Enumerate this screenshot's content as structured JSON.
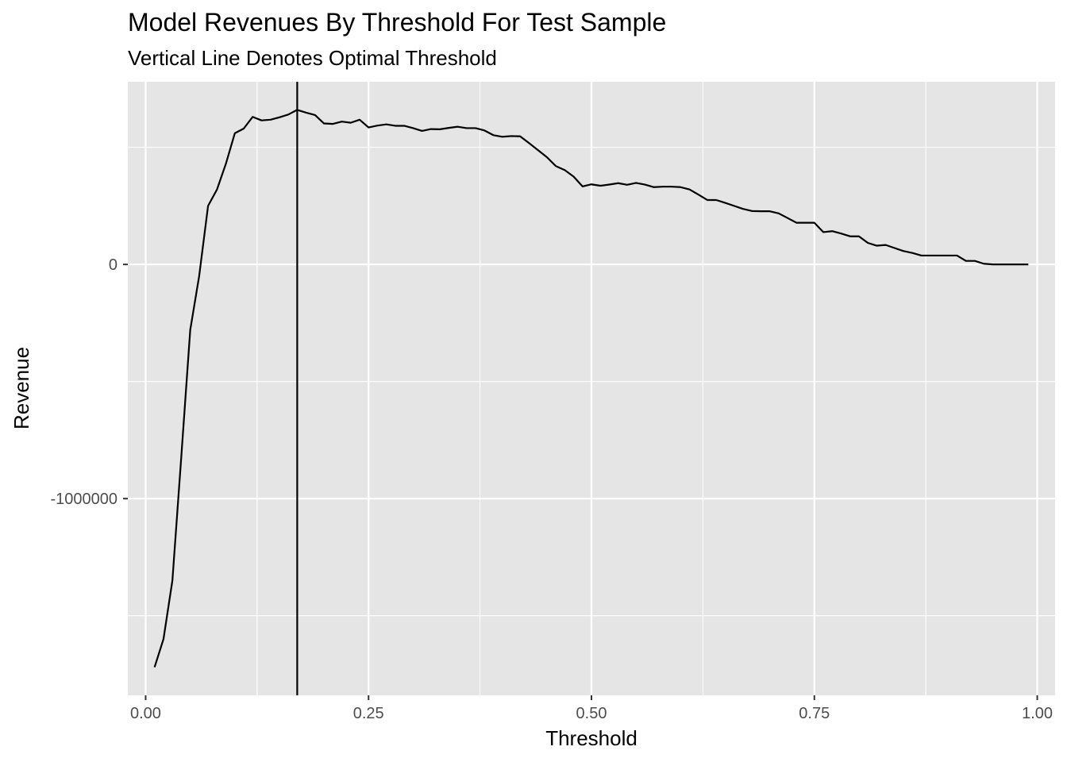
{
  "chart_data": {
    "type": "line",
    "title": "Model Revenues By Threshold For Test Sample",
    "subtitle": "Vertical Line Denotes Optimal Threshold",
    "xlabel": "Threshold",
    "ylabel": "Revenue",
    "xlim": [
      -0.02,
      1.02
    ],
    "ylim": [
      -1840000,
      780000
    ],
    "x_ticks": [
      {
        "value": 0.0,
        "label": "0.00"
      },
      {
        "value": 0.25,
        "label": "0.25"
      },
      {
        "value": 0.5,
        "label": "0.50"
      },
      {
        "value": 0.75,
        "label": "0.75"
      },
      {
        "value": 1.0,
        "label": "1.00"
      }
    ],
    "y_ticks": [
      {
        "value": 0,
        "label": "0"
      },
      {
        "value": -1000000,
        "label": "-1000000"
      }
    ],
    "x_minor_gridlines": [
      0.125,
      0.375,
      0.625,
      0.875
    ],
    "y_minor_gridlines": [
      500000,
      -500000,
      -1500000
    ],
    "grid": true,
    "panel_background": "#e5e5e5",
    "grid_color": "#ffffff",
    "line_color": "#000000",
    "optimal_threshold": 0.17,
    "series": [
      {
        "x": [
          0.01,
          0.02,
          0.03,
          0.04,
          0.05,
          0.06,
          0.07,
          0.08,
          0.09,
          0.1,
          0.11,
          0.12,
          0.13,
          0.14,
          0.15,
          0.16,
          0.17,
          0.18,
          0.19,
          0.2,
          0.21,
          0.22,
          0.23,
          0.24,
          0.25,
          0.26,
          0.27,
          0.28,
          0.29,
          0.3,
          0.31,
          0.32,
          0.33,
          0.34,
          0.35,
          0.36,
          0.37,
          0.38,
          0.39,
          0.4,
          0.41,
          0.42,
          0.43,
          0.44,
          0.45,
          0.46,
          0.47,
          0.48,
          0.49,
          0.5,
          0.51,
          0.52,
          0.53,
          0.54,
          0.55,
          0.56,
          0.57,
          0.58,
          0.59,
          0.6,
          0.61,
          0.62,
          0.63,
          0.64,
          0.65,
          0.66,
          0.67,
          0.68,
          0.69,
          0.7,
          0.71,
          0.72,
          0.73,
          0.74,
          0.75,
          0.76,
          0.77,
          0.78,
          0.79,
          0.8,
          0.81,
          0.82,
          0.83,
          0.84,
          0.85,
          0.86,
          0.87,
          0.88,
          0.89,
          0.9,
          0.91,
          0.92,
          0.93,
          0.94,
          0.95,
          0.96,
          0.97,
          0.98,
          0.99
        ],
        "y": [
          -1720000,
          -1600000,
          -1350000,
          -820000,
          -280000,
          -50000,
          250000,
          320000,
          430000,
          560000,
          580000,
          630000,
          615000,
          618000,
          628000,
          640000,
          660000,
          648000,
          638000,
          602000,
          600000,
          610000,
          605000,
          618000,
          585000,
          593000,
          598000,
          592000,
          592000,
          582000,
          570000,
          578000,
          577000,
          583000,
          588000,
          582000,
          582000,
          572000,
          552000,
          545000,
          548000,
          547000,
          518000,
          488000,
          458000,
          420000,
          403000,
          375000,
          333000,
          342000,
          336000,
          341000,
          347000,
          340000,
          348000,
          341000,
          330000,
          332000,
          332000,
          330000,
          320000,
          298000,
          275000,
          275000,
          263000,
          250000,
          237000,
          228000,
          227000,
          227000,
          218000,
          198000,
          178000,
          178000,
          178000,
          138000,
          142000,
          132000,
          120000,
          120000,
          92000,
          80000,
          83000,
          70000,
          57000,
          49000,
          38000,
          38000,
          38000,
          38000,
          38000,
          15000,
          15000,
          3000,
          0,
          0,
          0,
          0,
          0
        ]
      }
    ]
  }
}
